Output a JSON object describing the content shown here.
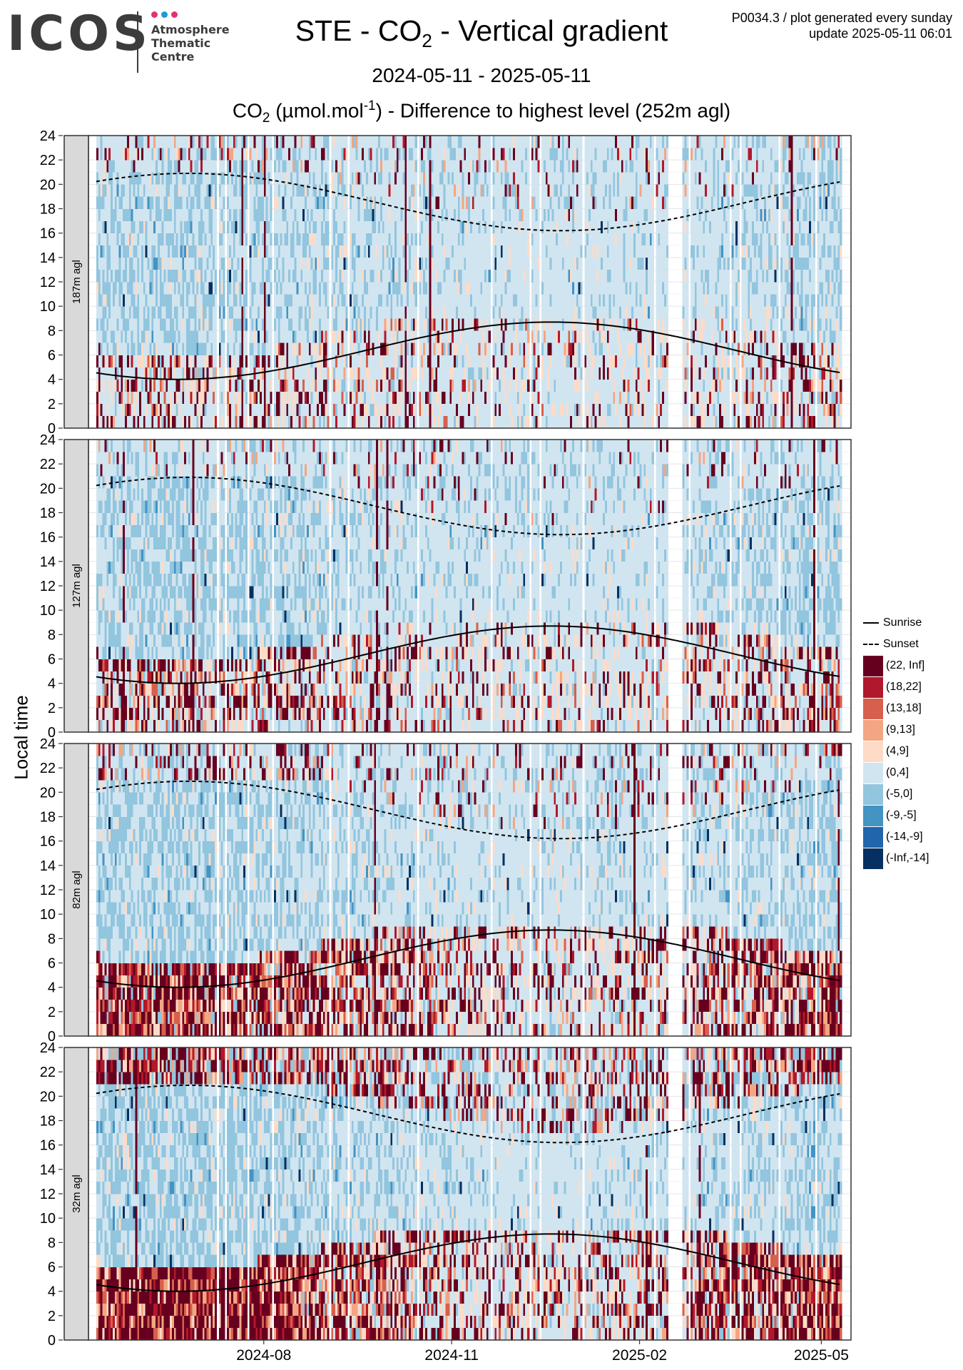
{
  "header": {
    "logo_text": "ICOS",
    "logo_sub": [
      "Atmosphere",
      "Thematic",
      "Centre"
    ],
    "logo_dot_colors": [
      "#e2336f",
      "#1f9ad6",
      "#e2336f"
    ],
    "title_main": "STE - CO",
    "title_sub": "2",
    "title_rest": " - Vertical gradient",
    "meta_line1": "P0034.3 / plot generated every sunday",
    "meta_line2": "update  2025-05-11 06:01",
    "date_range": "2024-05-11 - 2025-05-11",
    "subtitle_a": "CO",
    "subtitle_sub": "2",
    "subtitle_b": " (µmol.mol",
    "subtitle_sup": "-1",
    "subtitle_c": ") - Difference to highest level (252m agl)"
  },
  "chart_data": {
    "type": "heatmap",
    "xlabel": "",
    "ylabel": "Local time",
    "x_range": [
      "2024-05-11",
      "2025-05-11"
    ],
    "x_ticks": [
      "2024-08",
      "2024-11",
      "2025-02",
      "2025-05"
    ],
    "x_tick_dates": [
      "2024-08-01",
      "2024-11-01",
      "2025-02-01",
      "2025-05-01"
    ],
    "ylim": [
      0,
      24
    ],
    "y_ticks": [
      0,
      2,
      4,
      6,
      8,
      10,
      12,
      14,
      16,
      18,
      20,
      22,
      24
    ],
    "grid": true,
    "legend_position": "right",
    "panels": [
      {
        "name": "187m agl",
        "dawn_positive": 0.3,
        "night_positive": 0.18,
        "midday_negative": 0.45
      },
      {
        "name": "127m agl",
        "dawn_positive": 0.45,
        "night_positive": 0.15,
        "midday_negative": 0.5
      },
      {
        "name": "82m agl",
        "dawn_positive": 0.8,
        "night_positive": 0.3,
        "midday_negative": 0.5
      },
      {
        "name": "32m agl",
        "dawn_positive": 0.95,
        "night_positive": 0.8,
        "midday_negative": 0.55
      }
    ],
    "sunrise": {
      "name": "Sunrise",
      "style": "solid",
      "min_hour": 4.0,
      "min_date": "2024-06-20",
      "max_hour": 8.7,
      "max_date": "2024-12-25"
    },
    "sunset": {
      "name": "Sunset",
      "style": "dashed",
      "max_hour": 20.9,
      "max_date": "2024-06-25",
      "min_hour": 16.2,
      "min_date": "2024-12-15"
    },
    "bins": [
      {
        "label": "(22, Inf]",
        "color": "#67001f"
      },
      {
        "label": "(18,22]",
        "color": "#b2182b"
      },
      {
        "label": "(13,18]",
        "color": "#d6604d"
      },
      {
        "label": "(9,13]",
        "color": "#f4a582"
      },
      {
        "label": "(4,9]",
        "color": "#fddbc7"
      },
      {
        "label": "(0,4]",
        "color": "#d1e5f0"
      },
      {
        "label": "(-5,0]",
        "color": "#92c5de"
      },
      {
        "label": "(-9,-5]",
        "color": "#4393c3"
      },
      {
        "label": "(-14,-9]",
        "color": "#2166ac"
      },
      {
        "label": "(-Inf,-14]",
        "color": "#053061"
      }
    ]
  }
}
